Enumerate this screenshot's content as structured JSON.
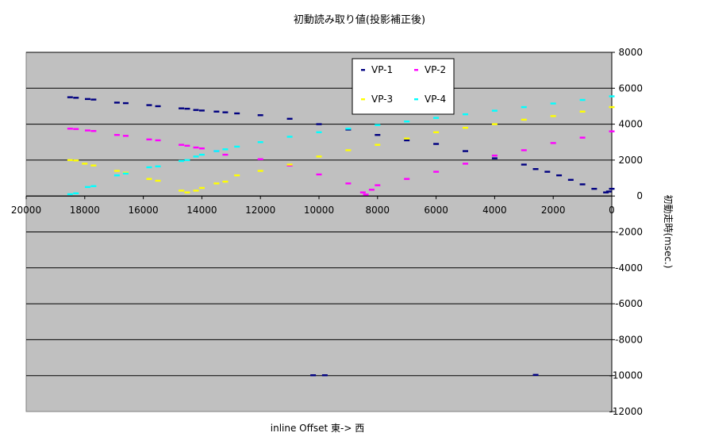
{
  "chart_data": {
    "type": "scatter",
    "title": "初動読み取り値(投影補正後)",
    "xlabel": "inline  Offset  東-> 西",
    "ylabel": "初動走時(msec.)",
    "xlim": [
      20000,
      0
    ],
    "ylim": [
      -12000,
      8000
    ],
    "x_reversed": true,
    "x_ticks": [
      "20000",
      "18000",
      "16000",
      "14000",
      "12000",
      "10000",
      "8000",
      "6000",
      "4000",
      "2000",
      "0"
    ],
    "y_ticks": [
      "8000",
      "6000",
      "4000",
      "2000",
      "0",
      "-2000",
      "-4000",
      "-6000",
      "-8000",
      "-10000",
      "-12000"
    ],
    "grid": true,
    "legend": "top-center",
    "plot_background": "#c0c0c0",
    "series": [
      {
        "name": "VP-1",
        "color": "#000080",
        "points": [
          [
            18500,
            5500
          ],
          [
            18300,
            5470
          ],
          [
            17900,
            5400
          ],
          [
            17700,
            5370
          ],
          [
            16900,
            5200
          ],
          [
            16600,
            5170
          ],
          [
            15800,
            5060
          ],
          [
            15500,
            5000
          ],
          [
            14700,
            4880
          ],
          [
            14500,
            4860
          ],
          [
            14200,
            4790
          ],
          [
            14000,
            4760
          ],
          [
            13500,
            4700
          ],
          [
            13200,
            4660
          ],
          [
            12800,
            4600
          ],
          [
            12000,
            4500
          ],
          [
            11000,
            4300
          ],
          [
            10000,
            4000
          ],
          [
            9000,
            3700
          ],
          [
            8000,
            3400
          ],
          [
            7000,
            3100
          ],
          [
            6000,
            2900
          ],
          [
            5000,
            2500
          ],
          [
            4000,
            2100
          ],
          [
            3000,
            1750
          ],
          [
            2600,
            1500
          ],
          [
            2200,
            1350
          ],
          [
            1800,
            1150
          ],
          [
            1400,
            900
          ],
          [
            1000,
            650
          ],
          [
            600,
            400
          ],
          [
            200,
            200
          ],
          [
            100,
            250
          ],
          [
            0,
            400
          ],
          [
            10200,
            -9980
          ],
          [
            9800,
            -9980
          ],
          [
            2600,
            -9960
          ]
        ]
      },
      {
        "name": "VP-2",
        "color": "#ff00ff",
        "points": [
          [
            18500,
            3750
          ],
          [
            18300,
            3730
          ],
          [
            17900,
            3650
          ],
          [
            17700,
            3620
          ],
          [
            16900,
            3400
          ],
          [
            16600,
            3350
          ],
          [
            15800,
            3150
          ],
          [
            15500,
            3100
          ],
          [
            14700,
            2850
          ],
          [
            14500,
            2800
          ],
          [
            14200,
            2700
          ],
          [
            14000,
            2650
          ],
          [
            13500,
            2500
          ],
          [
            13200,
            2300
          ],
          [
            12000,
            2050
          ],
          [
            11000,
            1700
          ],
          [
            10000,
            1200
          ],
          [
            9000,
            700
          ],
          [
            8500,
            200
          ],
          [
            8400,
            80
          ],
          [
            8200,
            350
          ],
          [
            8000,
            600
          ],
          [
            7000,
            950
          ],
          [
            6000,
            1350
          ],
          [
            5000,
            1800
          ],
          [
            4000,
            2250
          ],
          [
            3000,
            2550
          ],
          [
            2000,
            2950
          ],
          [
            1000,
            3250
          ],
          [
            0,
            3600
          ]
        ]
      },
      {
        "name": "VP-3",
        "color": "#ffff00",
        "points": [
          [
            18500,
            2000
          ],
          [
            18300,
            1980
          ],
          [
            18000,
            1800
          ],
          [
            17700,
            1700
          ],
          [
            16900,
            1400
          ],
          [
            16600,
            1300
          ],
          [
            15800,
            950
          ],
          [
            15500,
            850
          ],
          [
            14700,
            300
          ],
          [
            14500,
            200
          ],
          [
            14200,
            300
          ],
          [
            14000,
            450
          ],
          [
            13500,
            700
          ],
          [
            13200,
            800
          ],
          [
            12800,
            1150
          ],
          [
            12000,
            1400
          ],
          [
            11000,
            1750
          ],
          [
            10000,
            2200
          ],
          [
            9000,
            2550
          ],
          [
            8000,
            2850
          ],
          [
            7000,
            3200
          ],
          [
            6000,
            3550
          ],
          [
            5000,
            3800
          ],
          [
            4000,
            4000
          ],
          [
            3000,
            4250
          ],
          [
            2000,
            4450
          ],
          [
            1000,
            4700
          ],
          [
            0,
            4950
          ]
        ]
      },
      {
        "name": "VP-4",
        "color": "#00ffff",
        "points": [
          [
            18500,
            100
          ],
          [
            18300,
            150
          ],
          [
            17900,
            500
          ],
          [
            17700,
            550
          ],
          [
            16900,
            1150
          ],
          [
            16600,
            1250
          ],
          [
            15800,
            1600
          ],
          [
            15500,
            1650
          ],
          [
            14700,
            1950
          ],
          [
            14500,
            2000
          ],
          [
            14200,
            2200
          ],
          [
            14000,
            2300
          ],
          [
            13500,
            2500
          ],
          [
            13200,
            2600
          ],
          [
            12800,
            2750
          ],
          [
            12000,
            3000
          ],
          [
            11000,
            3300
          ],
          [
            10000,
            3550
          ],
          [
            9000,
            3750
          ],
          [
            8000,
            3950
          ],
          [
            7000,
            4150
          ],
          [
            6000,
            4350
          ],
          [
            5000,
            4550
          ],
          [
            4000,
            4750
          ],
          [
            3000,
            4950
          ],
          [
            2000,
            5150
          ],
          [
            1000,
            5350
          ],
          [
            0,
            5550
          ]
        ]
      }
    ]
  }
}
